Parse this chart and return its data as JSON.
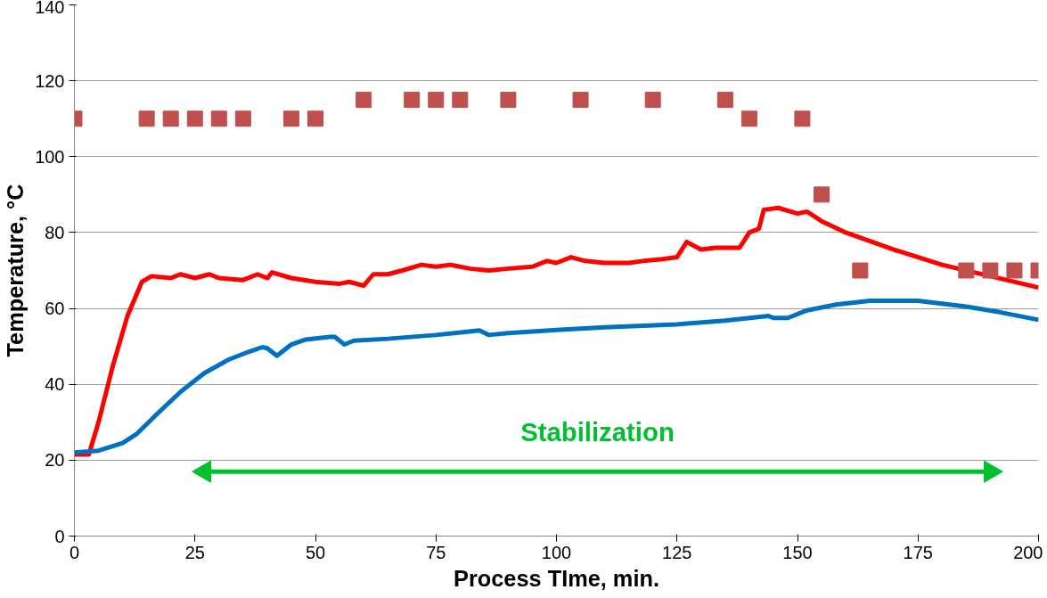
{
  "chart_data": {
    "type": "line",
    "xlabel": "Process TIme, min.",
    "ylabel": "Temperature, °C",
    "xlim": [
      0,
      200
    ],
    "ylim": [
      0,
      140
    ],
    "xticks": [
      0,
      25,
      50,
      75,
      100,
      125,
      150,
      175,
      200
    ],
    "yticks": [
      0,
      20,
      40,
      60,
      80,
      100,
      120,
      140
    ],
    "grid": "y",
    "line_style": "solid",
    "series": [
      {
        "color": "#ff0000",
        "x": [
          0,
          3,
          5,
          8,
          11,
          14,
          16,
          20,
          22,
          25,
          28,
          30,
          35,
          38,
          40,
          41,
          45,
          50,
          55,
          57,
          60,
          62,
          65,
          68,
          72,
          75,
          78,
          82,
          86,
          90,
          95,
          98,
          100,
          103,
          106,
          110,
          115,
          118,
          122,
          125,
          127,
          130,
          133,
          138,
          140,
          142,
          143,
          146,
          150,
          152,
          155,
          160,
          170,
          180,
          190,
          200
        ],
        "values": [
          21.5,
          21.5,
          30,
          45,
          58,
          67,
          68.5,
          68,
          69,
          68,
          69,
          68,
          67.5,
          69,
          68,
          69.5,
          68,
          67,
          66.5,
          67,
          66,
          69,
          69,
          70,
          71.5,
          71,
          71.5,
          70.5,
          70,
          70.5,
          71,
          72.5,
          72,
          73.5,
          72.5,
          72,
          72,
          72.5,
          73,
          73.5,
          77.5,
          75.5,
          76,
          76,
          80,
          81,
          86,
          86.5,
          85,
          85.5,
          83,
          80,
          75.5,
          71.5,
          68.5,
          65.5
        ]
      },
      {
        "color": "#0070c0",
        "x": [
          0,
          5,
          10,
          13,
          17,
          22,
          27,
          32,
          36,
          39,
          40,
          42,
          45,
          48,
          53,
          54,
          56,
          58,
          65,
          75,
          84,
          86,
          90,
          100,
          110,
          125,
          135,
          144,
          145,
          148,
          152,
          158,
          165,
          175,
          185,
          192,
          200
        ],
        "values": [
          22,
          22.5,
          24.5,
          27,
          32,
          38,
          43,
          46.5,
          48.5,
          49.8,
          49.5,
          47.5,
          50.5,
          51.8,
          52.5,
          52.5,
          50.5,
          51.5,
          52,
          53,
          54.2,
          53,
          53.5,
          54.3,
          55,
          55.8,
          56.8,
          58,
          57.5,
          57.5,
          59.5,
          61,
          62,
          62,
          60.5,
          59,
          57
        ]
      },
      {
        "type": "scatter",
        "color": "#c0504d",
        "marker": "square",
        "x": [
          0,
          15,
          20,
          25,
          30,
          35,
          45,
          50,
          60,
          70,
          75,
          80,
          90,
          105,
          120,
          135,
          140,
          151,
          155,
          163,
          185,
          190,
          195,
          200
        ],
        "values": [
          110,
          110,
          110,
          110,
          110,
          110,
          110,
          110,
          115,
          115,
          115,
          115,
          115,
          115,
          115,
          115,
          110,
          110,
          90,
          70,
          70,
          70,
          70,
          70
        ]
      },
      {
        "type": "line",
        "color": "#00c030",
        "marker": "triangle",
        "x": [
          27,
          190
        ],
        "values": [
          17,
          17
        ]
      }
    ],
    "annotations": [
      "Stabilization"
    ]
  }
}
